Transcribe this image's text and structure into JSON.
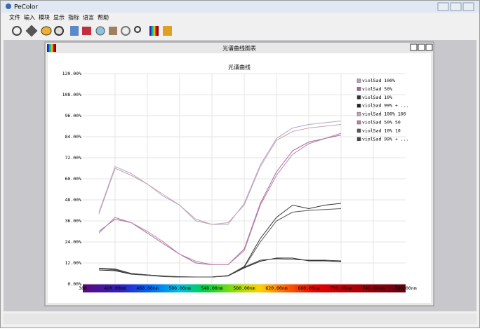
{
  "app": {
    "title": "PeColor",
    "menu": [
      "文件",
      "输入",
      "模块",
      "显示",
      "指标",
      "语言",
      "帮助"
    ]
  },
  "window": {
    "title": "光谱曲线图表"
  },
  "chart_data": {
    "type": "line",
    "title": "光谱曲线",
    "x": [
      400,
      420,
      440,
      460,
      480,
      500,
      520,
      540,
      560,
      580,
      600,
      620,
      640,
      660,
      680,
      700
    ],
    "xlim": [
      380,
      780
    ],
    "xticks": [
      380,
      {
        "value": 420,
        "label": "420.00nm"
      },
      {
        "value": 460,
        "label": "460.00nm"
      },
      {
        "value": 500,
        "label": "500.00nm"
      },
      {
        "value": 540,
        "label": "540.00nm"
      },
      {
        "value": 580,
        "label": "580.00nm"
      },
      {
        "value": 620,
        "label": "620.00nm"
      },
      {
        "value": 660,
        "label": "660.00nm"
      },
      {
        "value": 700,
        "label": "700.00nm"
      },
      {
        "value": 740,
        "label": "740.00nm"
      },
      {
        "value": 780,
        "label": "780.00nm"
      }
    ],
    "ylim": [
      0,
      120
    ],
    "yticks": [
      {
        "value": 0,
        "label": "0.00%"
      },
      {
        "value": 12,
        "label": "12.00%"
      },
      {
        "value": 24,
        "label": "24.00%"
      },
      {
        "value": 36,
        "label": "36.00%"
      },
      {
        "value": 48,
        "label": "48.00%"
      },
      {
        "value": 60,
        "label": "60.00%"
      },
      {
        "value": 72,
        "label": "72.00%"
      },
      {
        "value": 84,
        "label": "84.00%"
      },
      {
        "value": 96,
        "label": "96.00%"
      },
      {
        "value": 108,
        "label": "108.00%"
      },
      {
        "value": 120,
        "label": "120.00%"
      }
    ],
    "grid": true,
    "legend": "top-right",
    "series": [
      {
        "name": "violSad 100%",
        "color": "#b4a6c4",
        "values": [
          40,
          66,
          62,
          57,
          50,
          45,
          36,
          34,
          34,
          46,
          68,
          83,
          89,
          91,
          92,
          93
        ]
      },
      {
        "name": "violSad 50%",
        "color": "#9c6c9c",
        "values": [
          30,
          37,
          35,
          29,
          23,
          17,
          12,
          11,
          11,
          20,
          46,
          64,
          76,
          81,
          83,
          85
        ]
      },
      {
        "name": "violSad 10%",
        "color": "#333333",
        "values": [
          9,
          8.4,
          6,
          5.2,
          4.4,
          4,
          4,
          4,
          4.8,
          10,
          26,
          38,
          45,
          43,
          45,
          46
        ]
      },
      {
        "name": "violSad 99% + ...",
        "color": "#222222",
        "values": [
          8,
          7.6,
          5.6,
          5,
          4.4,
          4,
          4,
          4,
          4.6,
          9.2,
          13,
          14.8,
          14.8,
          13.2,
          13.2,
          12.8
        ]
      },
      {
        "name": "violSad 100% 100",
        "color": "#c8a4b0",
        "values": [
          41,
          67,
          63,
          57,
          51,
          45,
          37,
          34,
          35,
          45,
          67,
          82,
          87,
          89,
          90,
          91
        ]
      },
      {
        "name": "violSad 50% 50",
        "color": "#c080a8",
        "values": [
          29,
          38,
          35,
          30,
          24,
          17,
          13,
          11,
          11,
          19,
          45,
          62,
          74,
          80,
          83,
          86
        ]
      },
      {
        "name": "violSad 10% 10",
        "color": "#555555",
        "values": [
          8.8,
          8,
          5.8,
          5,
          4.2,
          4,
          4,
          4,
          4.6,
          9.6,
          24,
          36,
          41,
          42,
          42.5,
          43
        ]
      },
      {
        "name": "violSad 99% + ...",
        "color": "#444444",
        "values": [
          9,
          8.6,
          6,
          5.2,
          4.6,
          4.2,
          4,
          4,
          4.8,
          9.6,
          13.6,
          14.4,
          14,
          13.6,
          13.6,
          13.2
        ]
      }
    ]
  }
}
